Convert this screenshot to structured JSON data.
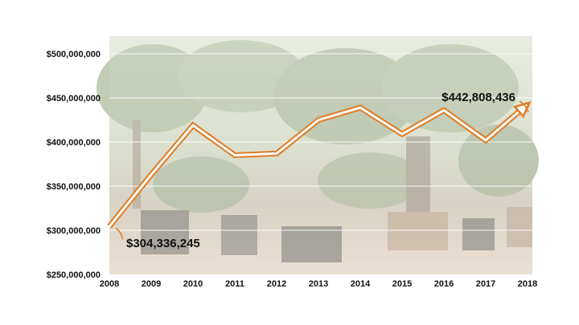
{
  "chart_data": {
    "type": "line",
    "x": [
      "2008",
      "2009",
      "2010",
      "2011",
      "2012",
      "2013",
      "2014",
      "2015",
      "2016",
      "2017",
      "2018"
    ],
    "series": [
      {
        "values": [
          304336245,
          363000000,
          419000000,
          385000000,
          387000000,
          425000000,
          439000000,
          409000000,
          436000000,
          402000000,
          442808436
        ]
      }
    ],
    "y_ticks": [
      "$250,000,000",
      "$300,000,000",
      "$350,000,000",
      "$400,000,000",
      "$450,000,000",
      "$500,000,000"
    ],
    "ylim": [
      250000000,
      520000000
    ],
    "grid": true,
    "annotations": {
      "start": "$304,336,245",
      "end": "$442,808,436"
    },
    "line_color": "#E07B24",
    "line_fill": "#ffffff",
    "background": "photo of potted palm trees at a nursery (faded)"
  }
}
